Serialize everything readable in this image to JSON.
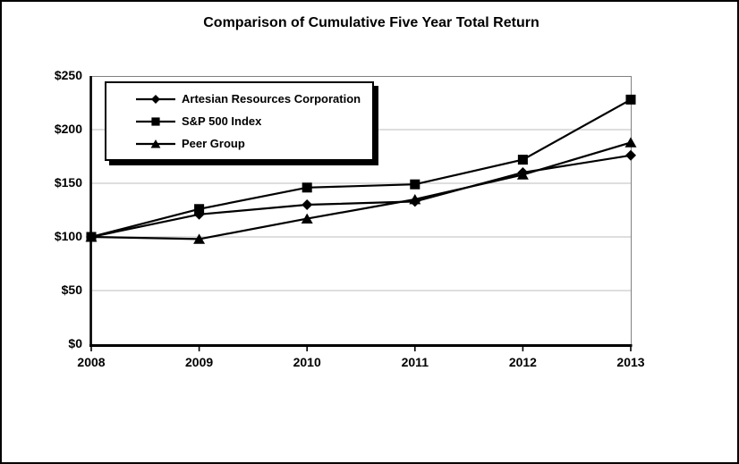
{
  "window": {
    "background_color": "#ffffff",
    "border_color": "#000000"
  },
  "title": "Comparison of Cumulative Five Year Total Return",
  "chart_data": {
    "type": "line",
    "title": "Comparison of Cumulative Five Year Total Return",
    "categories": [
      "2008",
      "2009",
      "2010",
      "2011",
      "2012",
      "2013"
    ],
    "series": [
      {
        "name": "Artesian Resources Corporation",
        "marker": "diamond",
        "color": "#000000",
        "values": [
          100,
          121,
          130,
          133,
          160,
          176
        ]
      },
      {
        "name": "S&P 500 Index",
        "marker": "square",
        "color": "#000000",
        "values": [
          100,
          126,
          146,
          149,
          172,
          228
        ]
      },
      {
        "name": "Peer Group",
        "marker": "triangle",
        "color": "#000000",
        "values": [
          100,
          98,
          117,
          135,
          158,
          188
        ]
      }
    ],
    "xlabel": "",
    "ylabel": "",
    "ylim": [
      0,
      250
    ],
    "yticks": [
      0,
      50,
      100,
      150,
      200,
      250
    ],
    "ytick_labels": [
      "$0",
      "$50",
      "$100",
      "$150",
      "$200",
      "$250"
    ],
    "grid": true,
    "gridline_color": "#c9c9c9",
    "frame_color": "#808080",
    "axis_color": "#000000",
    "legend_position": "top-left"
  }
}
